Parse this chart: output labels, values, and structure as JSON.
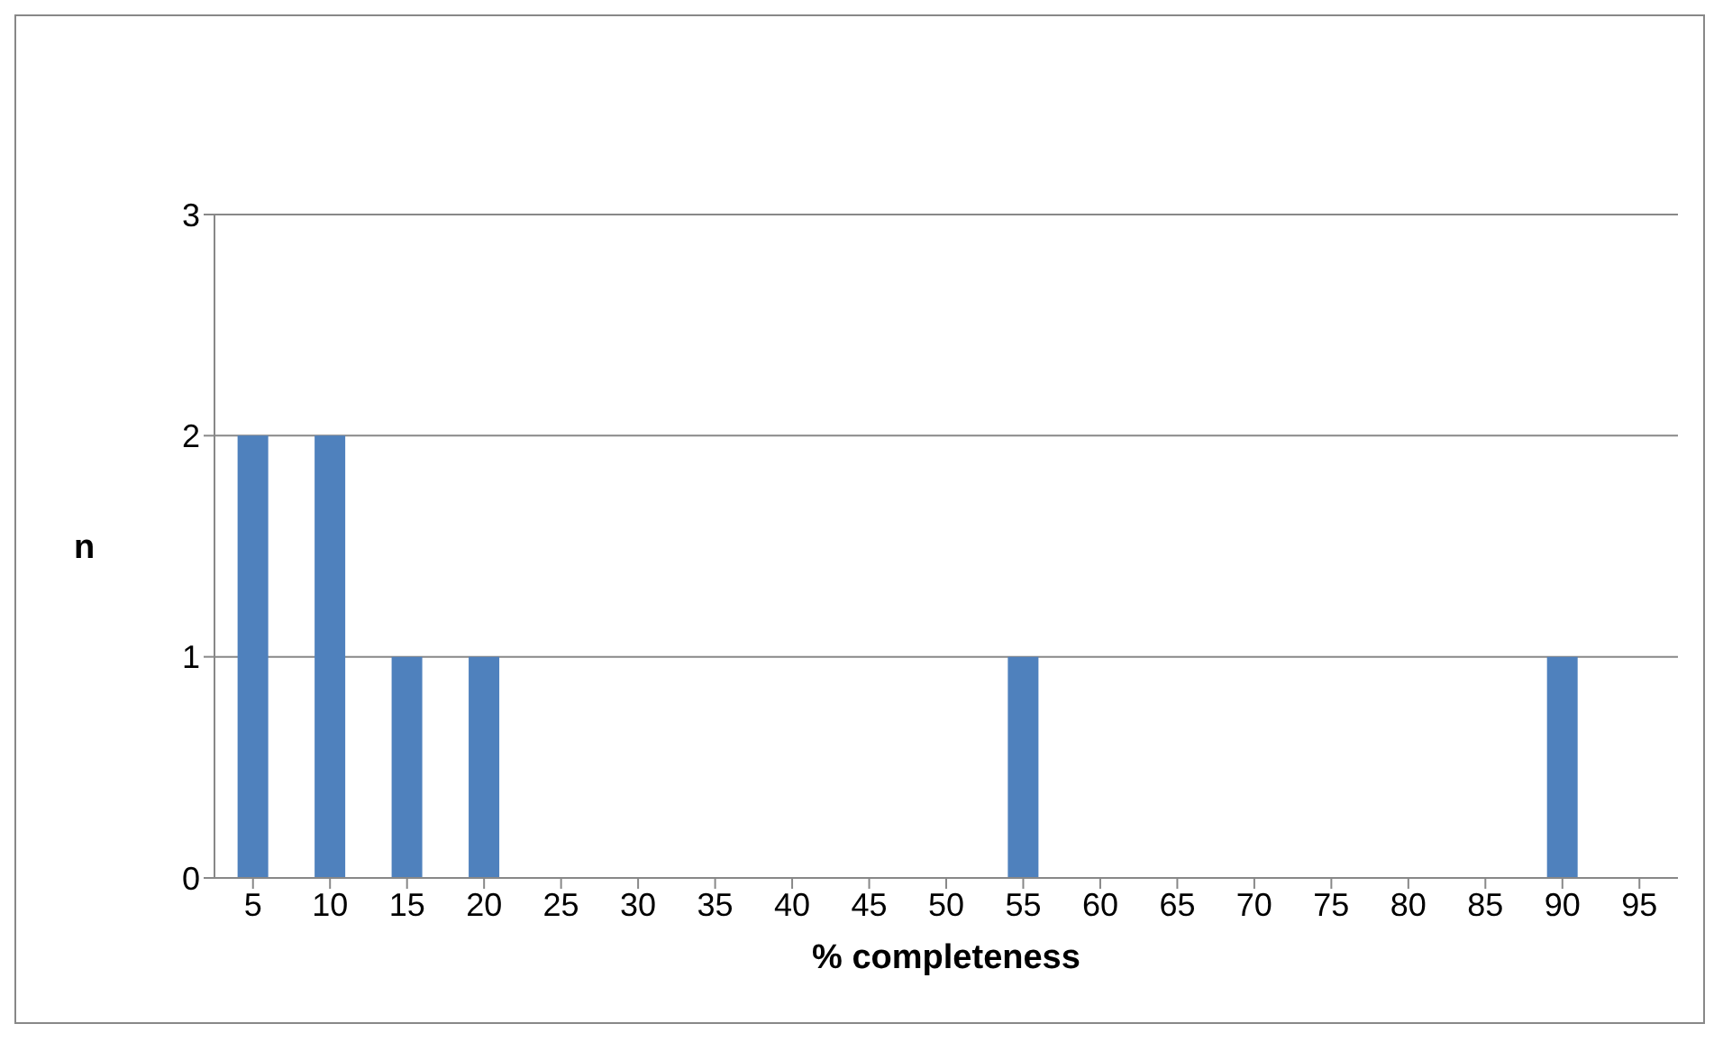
{
  "chart_data": {
    "type": "bar",
    "xlabel": "% completeness",
    "ylabel": "n",
    "categories": [
      "5",
      "10",
      "15",
      "20",
      "25",
      "30",
      "35",
      "40",
      "45",
      "50",
      "55",
      "60",
      "65",
      "70",
      "75",
      "80",
      "85",
      "90",
      "95"
    ],
    "values": [
      2,
      2,
      1,
      1,
      0,
      0,
      0,
      0,
      0,
      0,
      1,
      0,
      0,
      0,
      0,
      0,
      0,
      1,
      0
    ],
    "color": "#4f81bd",
    "ylim": [
      0,
      3
    ],
    "yticks": [
      0,
      1,
      2,
      3
    ],
    "grid": "y"
  }
}
